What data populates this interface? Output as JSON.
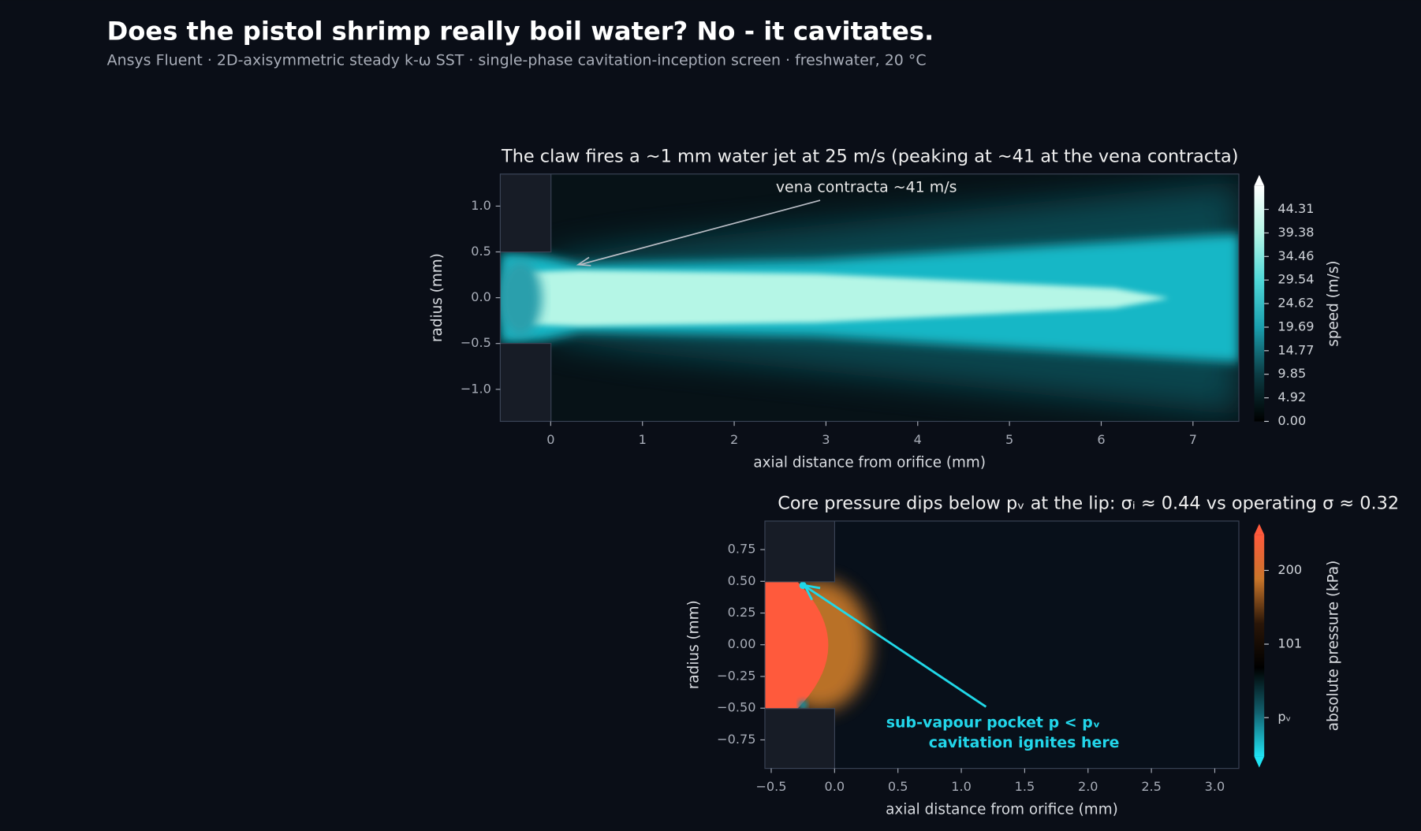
{
  "title": "Does the pistol shrimp really boil water?  No - it cavitates.",
  "subtitle": "Ansys Fluent · 2D-axisymmetric steady k-ω SST · single-phase cavitation-inception screen · freshwater, 20 °C",
  "chart_data": [
    {
      "type": "contour",
      "title": "The claw fires a ~1 mm water jet at 25 m/s (peaking at ~41 at the vena contracta)",
      "xlabel": "axial distance from orifice (mm)",
      "ylabel": "radius (mm)",
      "xlim": [
        -0.55,
        7.5
      ],
      "ylim": [
        -1.35,
        1.35
      ],
      "xticks": [
        0,
        1,
        2,
        3,
        4,
        5,
        6,
        7
      ],
      "yticks": [
        {
          "value": -1,
          "label": "−1.0"
        },
        {
          "value": -0.5,
          "label": "−0.5"
        },
        {
          "value": 0,
          "label": "0.0"
        },
        {
          "value": 0.5,
          "label": "0.5"
        },
        {
          "value": 1,
          "label": "1.0"
        }
      ],
      "annotations": [
        "vena contracta ~41 m/s"
      ],
      "colorbar": {
        "label": "speed (m/s)",
        "lim": [
          0,
          49.23
        ],
        "ticks": [
          {
            "value": 0,
            "label": "0.00"
          },
          4.92,
          9.85,
          14.77,
          19.69,
          24.62,
          29.54,
          34.46,
          39.38,
          44.31
        ],
        "colors": [
          "#000000",
          "#0c3c44",
          "#1a9fae",
          "#4fd8d8",
          "#b5f6e6",
          "#ffffff"
        ],
        "extend": "max"
      }
    },
    {
      "type": "contour",
      "title": "Core pressure dips below pᵥ at the lip: σᵢ ≈ 0.44 vs operating σ ≈ 0.32",
      "xlabel": "axial distance from orifice (mm)",
      "ylabel": "radius (mm)",
      "xlim": [
        -0.55,
        3.19
      ],
      "ylim": [
        -0.975,
        0.975
      ],
      "xticks": [
        {
          "value": -0.5,
          "label": "−0.5"
        },
        {
          "value": 0,
          "label": "0.0"
        },
        0.5,
        {
          "value": 1,
          "label": "1.0"
        },
        1.5,
        {
          "value": 2,
          "label": "2.0"
        },
        2.5,
        {
          "value": 3,
          "label": "3.0"
        }
      ],
      "yticks": [
        {
          "value": -0.75,
          "label": "−0.75"
        },
        {
          "value": -0.5,
          "label": "−0.50"
        },
        {
          "value": -0.25,
          "label": "−0.25"
        },
        {
          "value": 0,
          "label": "0.00"
        },
        0.25,
        {
          "value": 0.5,
          "label": "0.50"
        },
        0.75
      ],
      "annotations": [
        "sub-vapour pocket  p < pᵥ",
        "cavitation ignites here"
      ],
      "colorbar": {
        "label": "absolute pressure (kPa)",
        "lim": [
          -50,
          248
        ],
        "ticks": [
          {
            "value": 2.34,
            "label": "pᵥ"
          },
          101,
          200
        ],
        "colors": [
          "#20e4f4",
          "#12606e",
          "#000000",
          "#2a1608",
          "#c8752a",
          "#ff5a3c"
        ],
        "extend": "both"
      }
    }
  ]
}
